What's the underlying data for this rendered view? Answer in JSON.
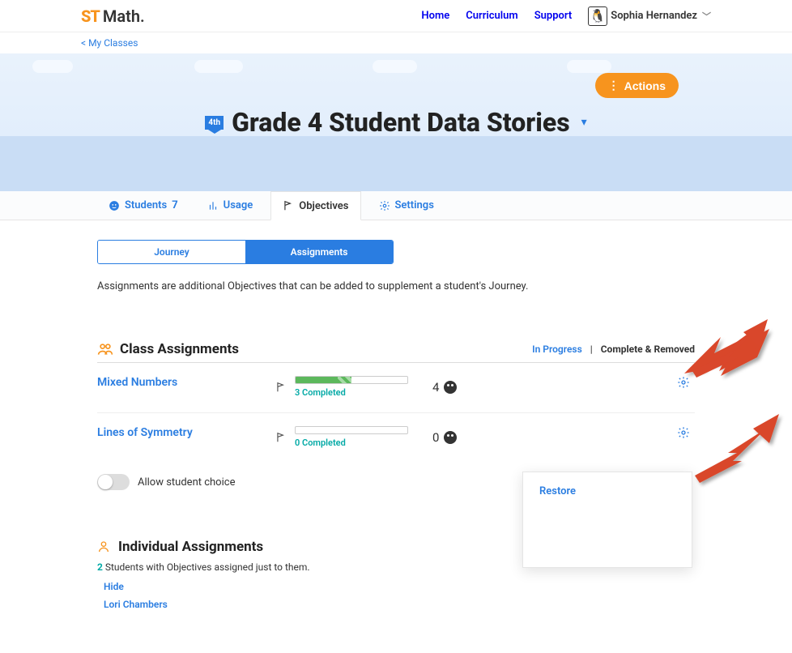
{
  "brand": {
    "st": "ST",
    "math": "Math."
  },
  "nav": {
    "home": "Home",
    "curriculum": "Curriculum",
    "support": "Support",
    "user": "Sophia Hernandez"
  },
  "breadcrumb": "< My Classes",
  "actions_label": "Actions",
  "grade_badge": "4th",
  "page_title": "Grade 4 Student Data Stories",
  "tabs": {
    "students": {
      "label": "Students",
      "count": "7"
    },
    "usage": {
      "label": "Usage"
    },
    "objectives": {
      "label": "Objectives"
    },
    "settings": {
      "label": "Settings"
    }
  },
  "segment": {
    "journey": "Journey",
    "assignments": "Assignments"
  },
  "description": "Assignments are additional Objectives that can be added to supplement a student's Journey.",
  "class_assign_header": "Class Assignments",
  "filters": {
    "in_progress": "In Progress",
    "complete": "Complete & Removed"
  },
  "assignments": [
    {
      "name": "Mixed Numbers",
      "count": "4",
      "completed_label": "3 Completed",
      "solid_pct": 38,
      "stripe_pct": 12
    },
    {
      "name": "Lines of Symmetry",
      "count": "0",
      "completed_label": "0 Completed",
      "solid_pct": 0,
      "stripe_pct": 0
    }
  ],
  "toggle_label": "Allow student choice",
  "indiv_header": "Individual Assignments",
  "indiv_count": "2",
  "indiv_line_rest": " Students with Objectives assigned just to them.",
  "student_links": [
    "Hide",
    "Lori Chambers"
  ],
  "popover": {
    "restore": "Restore"
  },
  "arrow_color": "#d9472b"
}
